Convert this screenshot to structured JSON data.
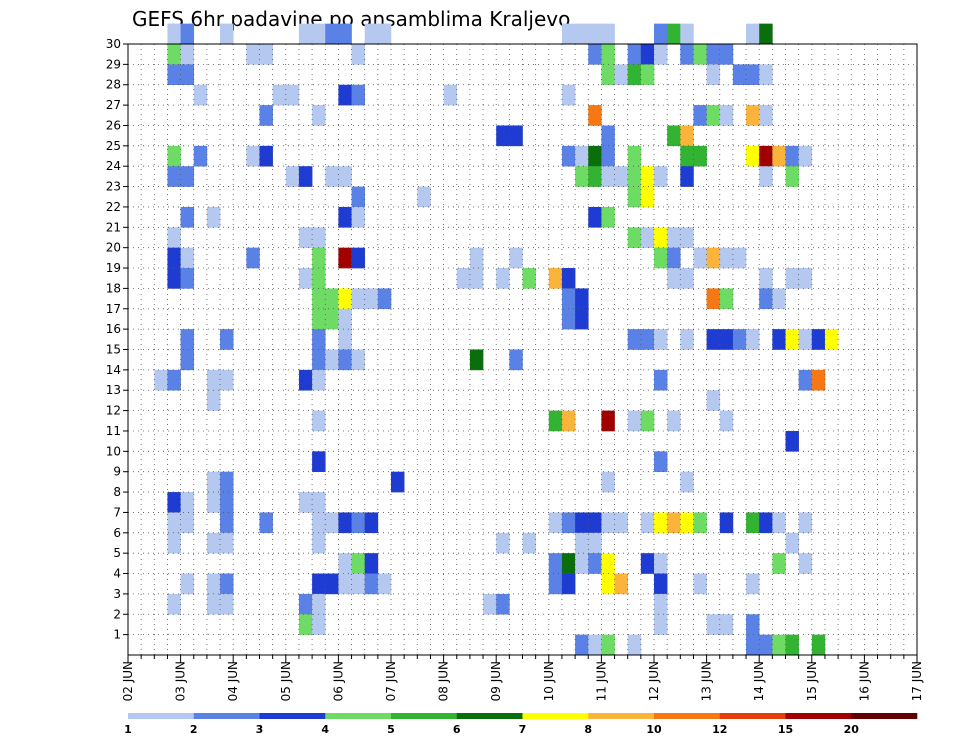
{
  "chart_data": {
    "type": "heatmap",
    "title": "GEFS 6hr padavine po ansamblima Kraljevo",
    "y_categories": [
      "1",
      "2",
      "3",
      "4",
      "5",
      "6",
      "7",
      "8",
      "9",
      "10",
      "11",
      "12",
      "13",
      "14",
      "15",
      "16",
      "17",
      "18",
      "19",
      "20",
      "21",
      "22",
      "23",
      "24",
      "25",
      "26",
      "27",
      "28",
      "29",
      "30"
    ],
    "x_ticks": [
      "02 JUN",
      "03 JUN",
      "04 JUN",
      "05 JUN",
      "06 JUN",
      "07 JUN",
      "08 JUN",
      "09 JUN",
      "10 JUN",
      "11 JUN",
      "12 JUN",
      "13 JUN",
      "14 JUN",
      "15 JUN",
      "16 JUN",
      "17 JUN"
    ],
    "time_step_hours": 6,
    "grid": true,
    "legend_position": "bottom",
    "legend": {
      "labels": [
        "1",
        "2",
        "3",
        "4",
        "5",
        "6",
        "7",
        "8",
        "10",
        "12",
        "15",
        "20"
      ],
      "colors": [
        "#b4c8f0",
        "#5a82e6",
        "#1e3cd2",
        "#6edc64",
        "#32b432",
        "#0a6e0a",
        "#ffff00",
        "#fab43c",
        "#f57814",
        "#e63c0a",
        "#a00000",
        "#640000"
      ]
    },
    "cells": [
      [
        30,
        3,
        1
      ],
      [
        30,
        4,
        2
      ],
      [
        30,
        7,
        1
      ],
      [
        30,
        13,
        1
      ],
      [
        30,
        14,
        1
      ],
      [
        30,
        15,
        2
      ],
      [
        30,
        16,
        2
      ],
      [
        30,
        18,
        1
      ],
      [
        30,
        19,
        1
      ],
      [
        30,
        33,
        1
      ],
      [
        30,
        34,
        1
      ],
      [
        30,
        35,
        1
      ],
      [
        30,
        36,
        1
      ],
      [
        30,
        40,
        2
      ],
      [
        30,
        41,
        5
      ],
      [
        30,
        42,
        1
      ],
      [
        30,
        47,
        1
      ],
      [
        30,
        48,
        6
      ],
      [
        29,
        3,
        4
      ],
      [
        29,
        4,
        1
      ],
      [
        29,
        9,
        1
      ],
      [
        29,
        10,
        1
      ],
      [
        29,
        17,
        1
      ],
      [
        29,
        35,
        2
      ],
      [
        29,
        36,
        4
      ],
      [
        29,
        38,
        2
      ],
      [
        29,
        39,
        3
      ],
      [
        29,
        40,
        1
      ],
      [
        29,
        42,
        2
      ],
      [
        29,
        43,
        4
      ],
      [
        29,
        44,
        2
      ],
      [
        29,
        45,
        2
      ],
      [
        28,
        3,
        2
      ],
      [
        28,
        4,
        2
      ],
      [
        28,
        36,
        4
      ],
      [
        28,
        37,
        1
      ],
      [
        28,
        38,
        5
      ],
      [
        28,
        39,
        4
      ],
      [
        28,
        44,
        1
      ],
      [
        28,
        46,
        2
      ],
      [
        28,
        47,
        2
      ],
      [
        28,
        48,
        1
      ],
      [
        27,
        5,
        1
      ],
      [
        27,
        11,
        1
      ],
      [
        27,
        12,
        1
      ],
      [
        27,
        16,
        3
      ],
      [
        27,
        17,
        2
      ],
      [
        27,
        24,
        1
      ],
      [
        27,
        33,
        1
      ],
      [
        26,
        10,
        2
      ],
      [
        26,
        14,
        1
      ],
      [
        26,
        35,
        9
      ],
      [
        26,
        43,
        2
      ],
      [
        26,
        44,
        4
      ],
      [
        26,
        45,
        1
      ],
      [
        26,
        47,
        8
      ],
      [
        26,
        48,
        1
      ],
      [
        25,
        28,
        3
      ],
      [
        25,
        29,
        3
      ],
      [
        25,
        36,
        2
      ],
      [
        25,
        41,
        5
      ],
      [
        25,
        42,
        8
      ],
      [
        24,
        3,
        4
      ],
      [
        24,
        5,
        2
      ],
      [
        24,
        9,
        1
      ],
      [
        24,
        10,
        3
      ],
      [
        24,
        33,
        2
      ],
      [
        24,
        34,
        1
      ],
      [
        24,
        35,
        6
      ],
      [
        24,
        36,
        2
      ],
      [
        24,
        38,
        4
      ],
      [
        24,
        42,
        5
      ],
      [
        24,
        43,
        5
      ],
      [
        24,
        47,
        7
      ],
      [
        24,
        48,
        11
      ],
      [
        24,
        49,
        8
      ],
      [
        24,
        50,
        2
      ],
      [
        24,
        51,
        1
      ],
      [
        23,
        3,
        2
      ],
      [
        23,
        4,
        2
      ],
      [
        23,
        12,
        1
      ],
      [
        23,
        13,
        3
      ],
      [
        23,
        15,
        1
      ],
      [
        23,
        16,
        1
      ],
      [
        23,
        34,
        4
      ],
      [
        23,
        35,
        5
      ],
      [
        23,
        36,
        1
      ],
      [
        23,
        37,
        1
      ],
      [
        23,
        38,
        4
      ],
      [
        23,
        39,
        7
      ],
      [
        23,
        40,
        1
      ],
      [
        23,
        42,
        3
      ],
      [
        23,
        48,
        1
      ],
      [
        23,
        50,
        4
      ],
      [
        22,
        17,
        2
      ],
      [
        22,
        22,
        1
      ],
      [
        22,
        38,
        4
      ],
      [
        22,
        39,
        7
      ],
      [
        21,
        4,
        2
      ],
      [
        21,
        6,
        1
      ],
      [
        21,
        16,
        3
      ],
      [
        21,
        17,
        1
      ],
      [
        21,
        35,
        3
      ],
      [
        21,
        36,
        4
      ],
      [
        20,
        3,
        1
      ],
      [
        20,
        13,
        1
      ],
      [
        20,
        14,
        1
      ],
      [
        20,
        38,
        4
      ],
      [
        20,
        39,
        1
      ],
      [
        20,
        40,
        7
      ],
      [
        20,
        41,
        1
      ],
      [
        20,
        42,
        1
      ],
      [
        19,
        3,
        3
      ],
      [
        19,
        4,
        1
      ],
      [
        19,
        9,
        2
      ],
      [
        19,
        14,
        4
      ],
      [
        19,
        16,
        11
      ],
      [
        19,
        17,
        3
      ],
      [
        19,
        26,
        1
      ],
      [
        19,
        29,
        1
      ],
      [
        19,
        40,
        4
      ],
      [
        19,
        41,
        2
      ],
      [
        19,
        43,
        1
      ],
      [
        19,
        44,
        8
      ],
      [
        19,
        45,
        1
      ],
      [
        19,
        46,
        1
      ],
      [
        18,
        3,
        3
      ],
      [
        18,
        4,
        2
      ],
      [
        18,
        13,
        1
      ],
      [
        18,
        14,
        4
      ],
      [
        18,
        25,
        1
      ],
      [
        18,
        26,
        1
      ],
      [
        18,
        28,
        1
      ],
      [
        18,
        30,
        4
      ],
      [
        18,
        32,
        8
      ],
      [
        18,
        33,
        3
      ],
      [
        18,
        41,
        1
      ],
      [
        18,
        42,
        1
      ],
      [
        18,
        50,
        1
      ],
      [
        18,
        51,
        1
      ],
      [
        18,
        48,
        1
      ],
      [
        17,
        14,
        4
      ],
      [
        17,
        15,
        4
      ],
      [
        17,
        16,
        7
      ],
      [
        17,
        17,
        1
      ],
      [
        17,
        18,
        1
      ],
      [
        17,
        19,
        2
      ],
      [
        17,
        33,
        2
      ],
      [
        17,
        34,
        3
      ],
      [
        17,
        48,
        2
      ],
      [
        17,
        49,
        1
      ],
      [
        17,
        44,
        9
      ],
      [
        17,
        45,
        4
      ],
      [
        16,
        14,
        4
      ],
      [
        16,
        15,
        4
      ],
      [
        16,
        16,
        1
      ],
      [
        16,
        33,
        2
      ],
      [
        16,
        34,
        3
      ],
      [
        15,
        4,
        2
      ],
      [
        15,
        7,
        2
      ],
      [
        15,
        14,
        2
      ],
      [
        15,
        16,
        1
      ],
      [
        15,
        38,
        2
      ],
      [
        15,
        39,
        2
      ],
      [
        15,
        40,
        1
      ],
      [
        15,
        42,
        1
      ],
      [
        15,
        44,
        3
      ],
      [
        15,
        45,
        3
      ],
      [
        15,
        46,
        2
      ],
      [
        15,
        47,
        1
      ],
      [
        15,
        49,
        3
      ],
      [
        15,
        50,
        7
      ],
      [
        15,
        51,
        1
      ],
      [
        15,
        52,
        3
      ],
      [
        15,
        53,
        7
      ],
      [
        14,
        4,
        2
      ],
      [
        14,
        14,
        2
      ],
      [
        14,
        15,
        1
      ],
      [
        14,
        16,
        2
      ],
      [
        14,
        17,
        1
      ],
      [
        14,
        26,
        6
      ],
      [
        14,
        29,
        2
      ],
      [
        13,
        2,
        1
      ],
      [
        13,
        3,
        2
      ],
      [
        13,
        6,
        1
      ],
      [
        13,
        7,
        1
      ],
      [
        13,
        13,
        3
      ],
      [
        13,
        14,
        1
      ],
      [
        13,
        40,
        2
      ],
      [
        13,
        51,
        2
      ],
      [
        13,
        52,
        9
      ],
      [
        12,
        6,
        1
      ],
      [
        12,
        44,
        1
      ],
      [
        11,
        14,
        1
      ],
      [
        11,
        32,
        5
      ],
      [
        11,
        33,
        8
      ],
      [
        11,
        36,
        11
      ],
      [
        11,
        38,
        1
      ],
      [
        11,
        39,
        4
      ],
      [
        11,
        41,
        1
      ],
      [
        11,
        45,
        1
      ],
      [
        10,
        50,
        3
      ],
      [
        9,
        14,
        3
      ],
      [
        9,
        40,
        2
      ],
      [
        8,
        6,
        1
      ],
      [
        8,
        7,
        2
      ],
      [
        8,
        20,
        3
      ],
      [
        8,
        36,
        1
      ],
      [
        8,
        42,
        1
      ],
      [
        7,
        3,
        3
      ],
      [
        7,
        4,
        1
      ],
      [
        7,
        6,
        1
      ],
      [
        7,
        7,
        2
      ],
      [
        7,
        13,
        1
      ],
      [
        7,
        14,
        1
      ],
      [
        6,
        3,
        1
      ],
      [
        6,
        4,
        1
      ],
      [
        6,
        7,
        2
      ],
      [
        6,
        10,
        2
      ],
      [
        6,
        14,
        1
      ],
      [
        6,
        15,
        1
      ],
      [
        6,
        16,
        3
      ],
      [
        6,
        17,
        2
      ],
      [
        6,
        18,
        3
      ],
      [
        6,
        32,
        1
      ],
      [
        6,
        33,
        2
      ],
      [
        6,
        34,
        3
      ],
      [
        6,
        35,
        3
      ],
      [
        6,
        36,
        1
      ],
      [
        6,
        37,
        1
      ],
      [
        6,
        39,
        1
      ],
      [
        6,
        40,
        7
      ],
      [
        6,
        41,
        8
      ],
      [
        6,
        42,
        7
      ],
      [
        6,
        43,
        4
      ],
      [
        6,
        45,
        3
      ],
      [
        6,
        47,
        5
      ],
      [
        6,
        48,
        3
      ],
      [
        6,
        49,
        1
      ],
      [
        6,
        51,
        1
      ],
      [
        5,
        3,
        1
      ],
      [
        5,
        6,
        1
      ],
      [
        5,
        7,
        1
      ],
      [
        5,
        14,
        1
      ],
      [
        5,
        28,
        1
      ],
      [
        5,
        30,
        1
      ],
      [
        5,
        34,
        1
      ],
      [
        5,
        35,
        1
      ],
      [
        5,
        50,
        1
      ],
      [
        4,
        16,
        1
      ],
      [
        4,
        17,
        4
      ],
      [
        4,
        18,
        3
      ],
      [
        4,
        32,
        2
      ],
      [
        4,
        33,
        6
      ],
      [
        4,
        34,
        1
      ],
      [
        4,
        35,
        2
      ],
      [
        4,
        36,
        7
      ],
      [
        4,
        39,
        3
      ],
      [
        4,
        40,
        1
      ],
      [
        4,
        49,
        4
      ],
      [
        4,
        51,
        1
      ],
      [
        3,
        4,
        1
      ],
      [
        3,
        6,
        1
      ],
      [
        3,
        7,
        2
      ],
      [
        3,
        14,
        3
      ],
      [
        3,
        15,
        3
      ],
      [
        3,
        16,
        1
      ],
      [
        3,
        17,
        1
      ],
      [
        3,
        18,
        2
      ],
      [
        3,
        19,
        1
      ],
      [
        3,
        32,
        2
      ],
      [
        3,
        33,
        3
      ],
      [
        3,
        36,
        7
      ],
      [
        3,
        37,
        8
      ],
      [
        3,
        40,
        3
      ],
      [
        3,
        43,
        1
      ],
      [
        3,
        47,
        1
      ],
      [
        2,
        3,
        1
      ],
      [
        2,
        6,
        1
      ],
      [
        2,
        7,
        1
      ],
      [
        2,
        13,
        2
      ],
      [
        2,
        14,
        1
      ],
      [
        2,
        27,
        1
      ],
      [
        2,
        28,
        2
      ],
      [
        2,
        40,
        1
      ],
      [
        1,
        13,
        4
      ],
      [
        1,
        14,
        1
      ],
      [
        1,
        40,
        1
      ],
      [
        1,
        44,
        1
      ],
      [
        1,
        45,
        1
      ],
      [
        1,
        47,
        2
      ],
      [
        0,
        34,
        2
      ],
      [
        0,
        35,
        1
      ],
      [
        0,
        36,
        4
      ],
      [
        0,
        38,
        1
      ],
      [
        0,
        47,
        2
      ],
      [
        0,
        48,
        2
      ],
      [
        0,
        49,
        4
      ],
      [
        0,
        50,
        5
      ],
      [
        0,
        52,
        5
      ]
    ]
  }
}
